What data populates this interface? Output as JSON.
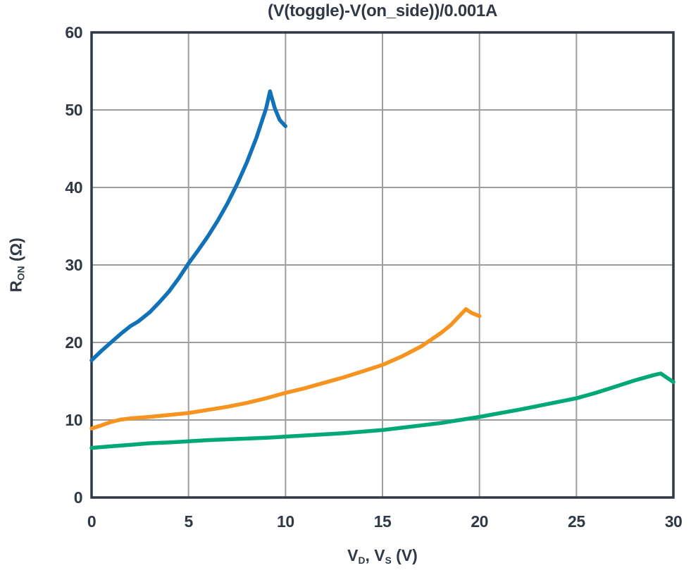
{
  "title": "(V(toggle)-V(on_side))/0.001A",
  "labels": {
    "y_base": "R",
    "y_sub": "ON",
    "y_rest": " (Ω)",
    "x_v1": "V",
    "x_sub1": "D",
    "x_mid": ", V",
    "x_sub2": "S",
    "x_rest": " (V)"
  },
  "colors": {
    "text": "#313947",
    "frame": "#313947",
    "grid": "#9c9ca1",
    "background": "#ffffff"
  },
  "chart_data": {
    "type": "line",
    "title": "(V(toggle)-V(on_side))/0.001A",
    "xlabel": "V_D, V_S (V)",
    "ylabel": "R_ON (Ω)",
    "xlim": [
      0,
      30
    ],
    "ylim": [
      0,
      60
    ],
    "xticks": [
      0,
      5,
      10,
      15,
      20,
      25,
      30
    ],
    "yticks": [
      0,
      10,
      20,
      30,
      40,
      50,
      60
    ],
    "grid": true,
    "legend": false,
    "series": [
      {
        "name": "series-1-blue",
        "color": "#1272b9",
        "points": [
          [
            0,
            17.7
          ],
          [
            0.5,
            18.9
          ],
          [
            1,
            20.0
          ],
          [
            1.5,
            21.1
          ],
          [
            2,
            22.1
          ],
          [
            2.4,
            22.7
          ],
          [
            3,
            23.9
          ],
          [
            3.5,
            25.2
          ],
          [
            4,
            26.6
          ],
          [
            4.5,
            28.3
          ],
          [
            5,
            30.2
          ],
          [
            5.5,
            31.9
          ],
          [
            6,
            33.7
          ],
          [
            6.5,
            35.7
          ],
          [
            7,
            37.9
          ],
          [
            7.5,
            40.4
          ],
          [
            8,
            43.2
          ],
          [
            8.5,
            46.4
          ],
          [
            9,
            50.2
          ],
          [
            9.2,
            52.4
          ],
          [
            9.45,
            50.2
          ],
          [
            9.7,
            48.7
          ],
          [
            10,
            47.9
          ]
        ]
      },
      {
        "name": "series-2-orange",
        "color": "#f7941f",
        "points": [
          [
            0,
            8.9
          ],
          [
            0.5,
            9.3
          ],
          [
            1,
            9.75
          ],
          [
            1.5,
            10.05
          ],
          [
            2,
            10.2
          ],
          [
            3,
            10.4
          ],
          [
            4,
            10.65
          ],
          [
            5,
            10.9
          ],
          [
            6,
            11.3
          ],
          [
            7,
            11.7
          ],
          [
            8,
            12.2
          ],
          [
            9,
            12.8
          ],
          [
            10,
            13.5
          ],
          [
            11,
            14.1
          ],
          [
            12,
            14.8
          ],
          [
            13,
            15.5
          ],
          [
            14,
            16.3
          ],
          [
            15,
            17.1
          ],
          [
            16,
            18.2
          ],
          [
            17,
            19.5
          ],
          [
            18,
            21.2
          ],
          [
            18.5,
            22.2
          ],
          [
            19,
            23.5
          ],
          [
            19.3,
            24.3
          ],
          [
            19.6,
            23.8
          ],
          [
            20,
            23.4
          ]
        ]
      },
      {
        "name": "series-3-green",
        "color": "#00a878",
        "points": [
          [
            0,
            6.4
          ],
          [
            1,
            6.6
          ],
          [
            2,
            6.8
          ],
          [
            3,
            7.0
          ],
          [
            4,
            7.1
          ],
          [
            5,
            7.25
          ],
          [
            6,
            7.4
          ],
          [
            7,
            7.5
          ],
          [
            8,
            7.6
          ],
          [
            9,
            7.7
          ],
          [
            10,
            7.85
          ],
          [
            11,
            8.0
          ],
          [
            12,
            8.15
          ],
          [
            13,
            8.3
          ],
          [
            14,
            8.5
          ],
          [
            15,
            8.7
          ],
          [
            16,
            9.0
          ],
          [
            17,
            9.3
          ],
          [
            18,
            9.6
          ],
          [
            19,
            10.0
          ],
          [
            20,
            10.4
          ],
          [
            21,
            10.85
          ],
          [
            22,
            11.3
          ],
          [
            23,
            11.8
          ],
          [
            24,
            12.3
          ],
          [
            25,
            12.8
          ],
          [
            26,
            13.5
          ],
          [
            27,
            14.3
          ],
          [
            28,
            15.1
          ],
          [
            29,
            15.8
          ],
          [
            29.35,
            16.0
          ],
          [
            29.7,
            15.4
          ],
          [
            30,
            14.9
          ]
        ]
      }
    ]
  }
}
